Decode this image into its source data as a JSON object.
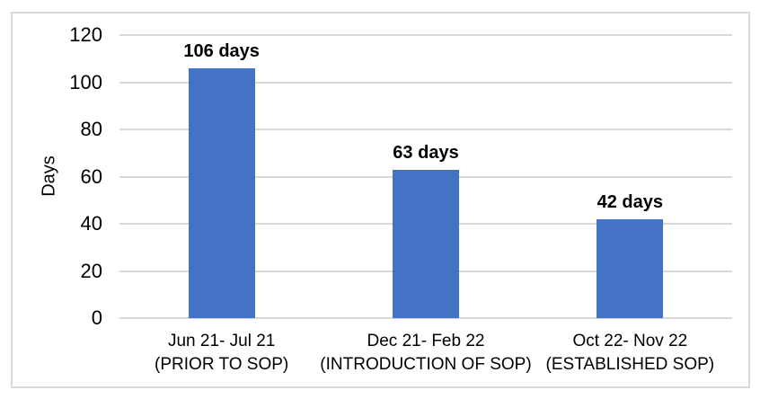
{
  "chart_data": {
    "type": "bar",
    "title": "",
    "xlabel": "",
    "ylabel": "Days",
    "ylim": [
      0,
      120
    ],
    "yticks": [
      0,
      20,
      40,
      60,
      80,
      100,
      120
    ],
    "grid": "horizontal",
    "legend": "none",
    "categories": [
      {
        "line1": "Jun 21- Jul 21",
        "line2": "(PRIOR TO SOP)"
      },
      {
        "line1": "Dec 21- Feb 22",
        "line2": "(INTRODUCTION OF SOP)"
      },
      {
        "line1": "Oct 22- Nov 22",
        "line2": "(ESTABLISHED SOP)"
      }
    ],
    "values": [
      106,
      63,
      42
    ],
    "data_labels": [
      "106 days",
      "63 days",
      "42 days"
    ],
    "colors": {
      "bar": "#4472C4",
      "gridline": "#D9D9D9",
      "frame_border": "#D9D9D9",
      "text": "#000000"
    }
  }
}
